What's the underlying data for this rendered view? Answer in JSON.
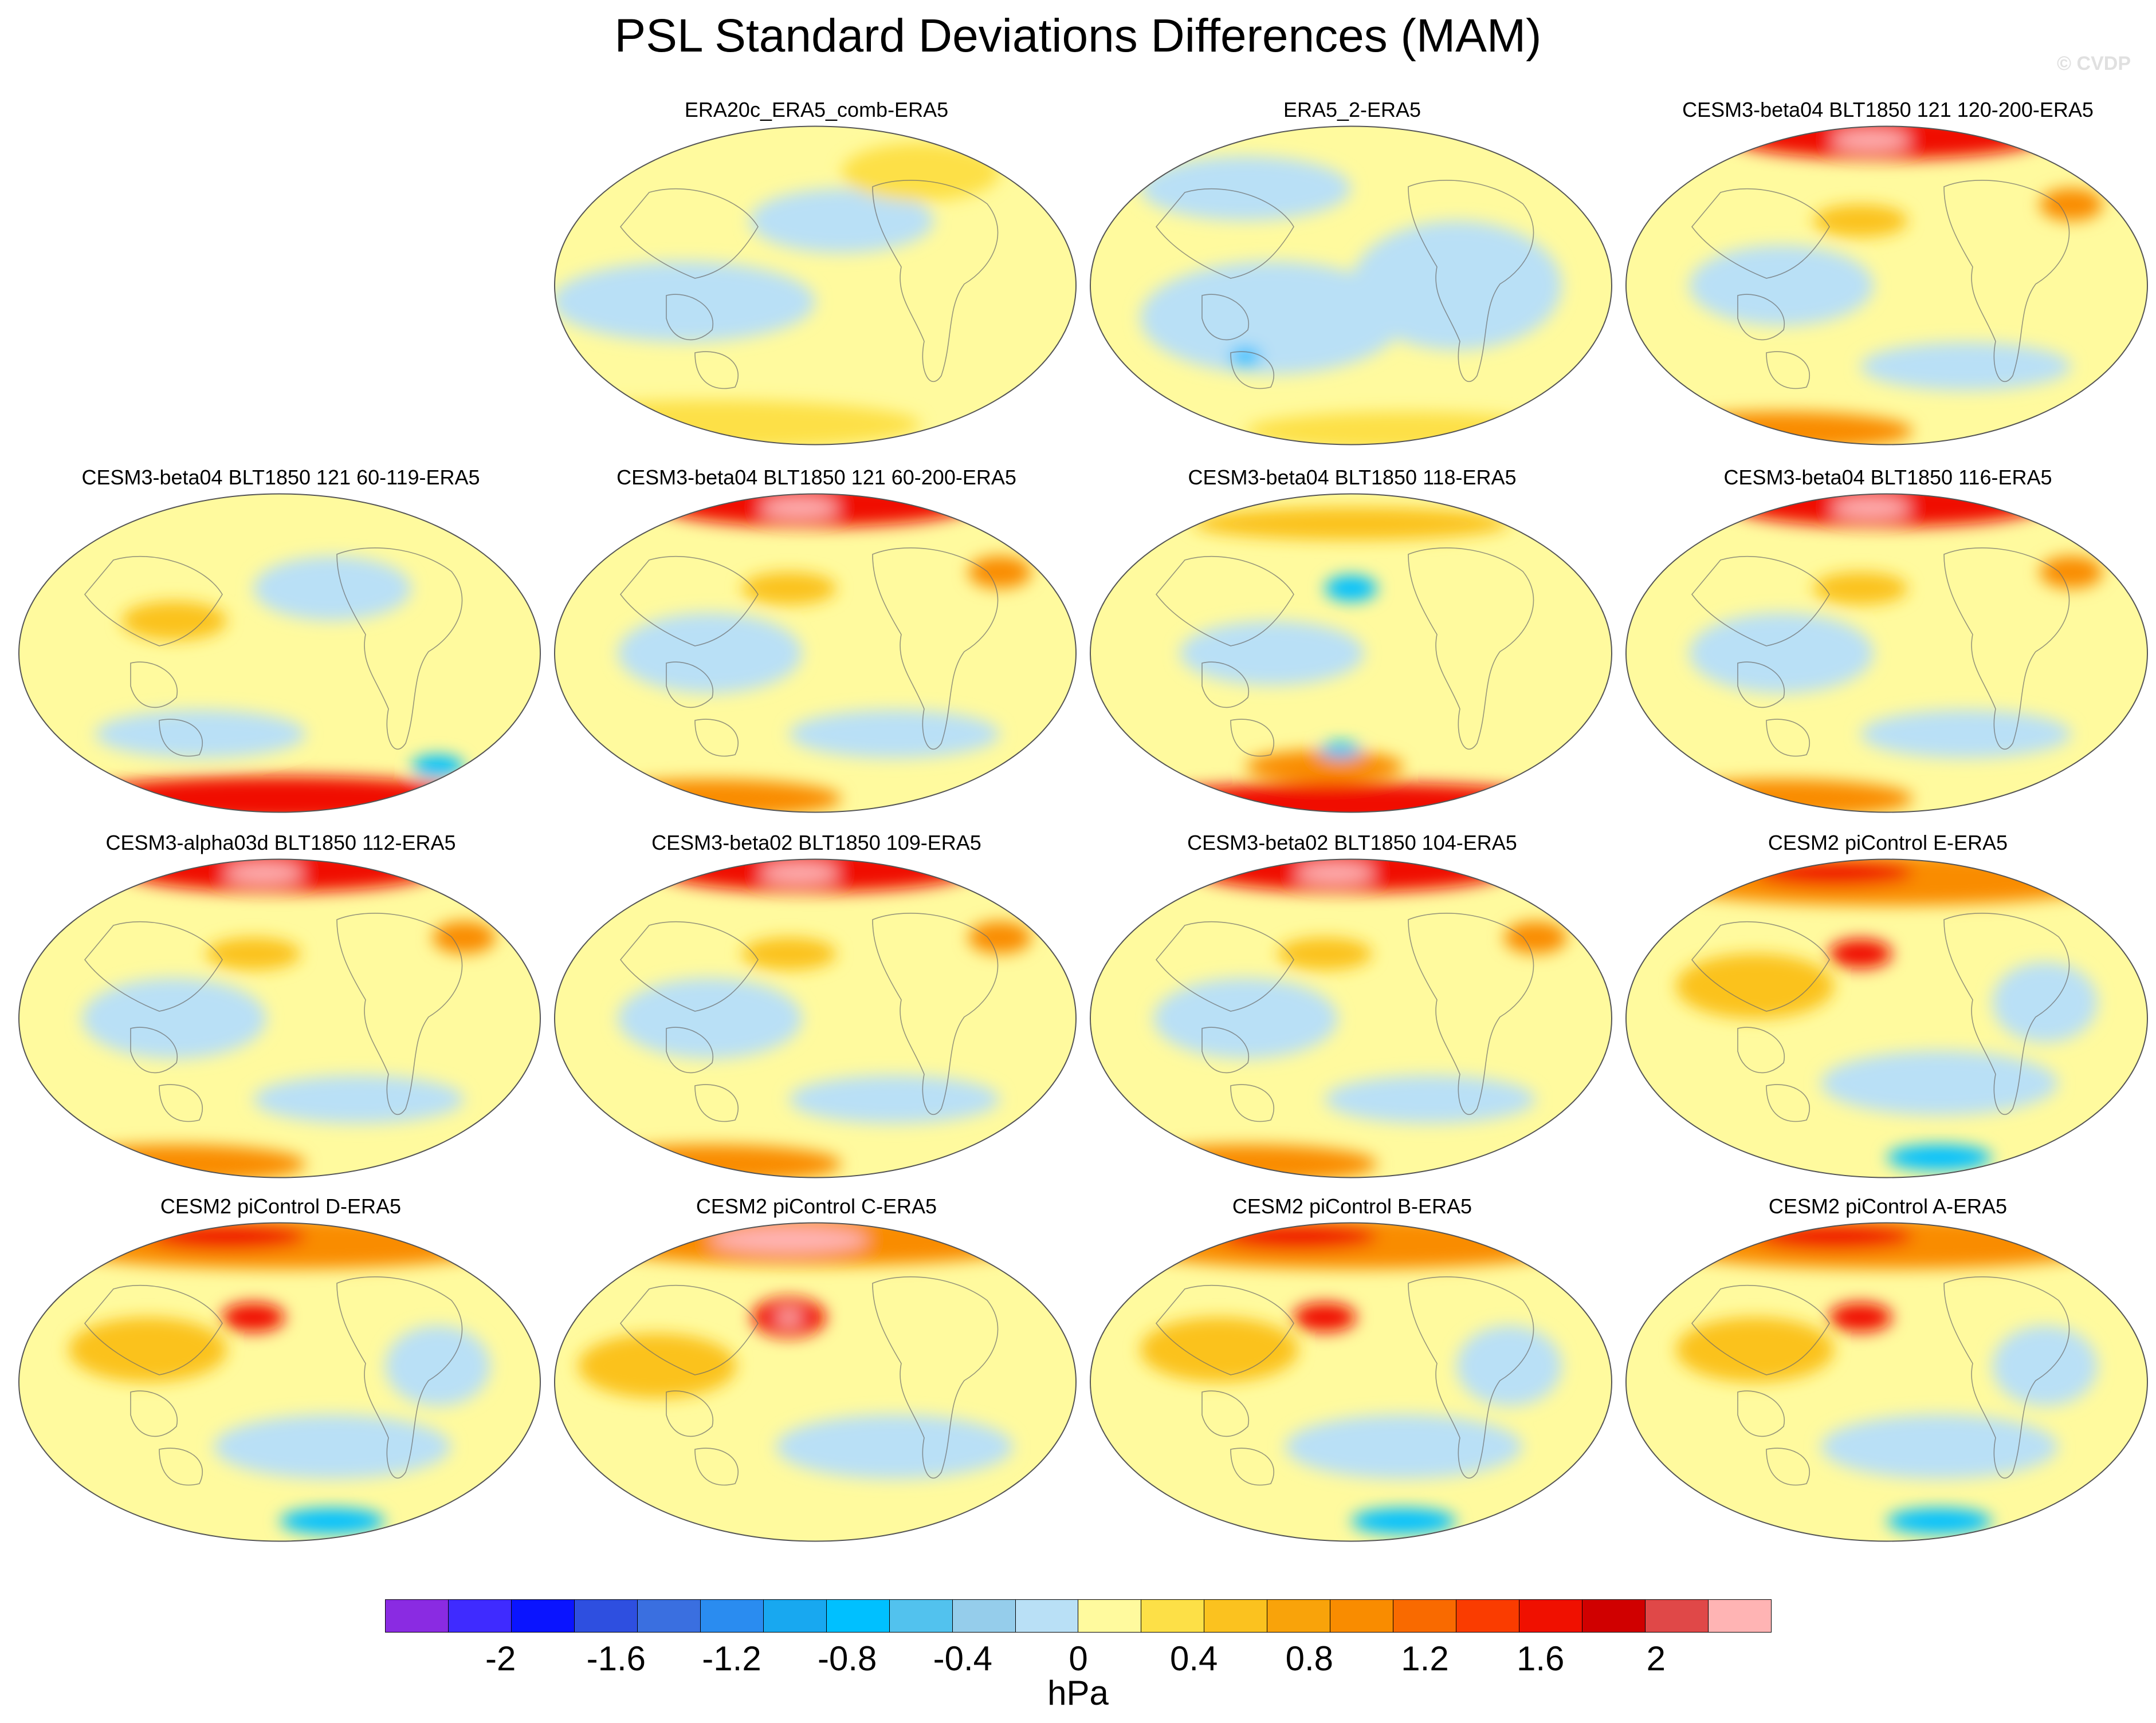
{
  "title": "PSL Standard Deviations Differences (MAM)",
  "copyright": "© CVDP",
  "panels": [
    {
      "label": "ERA20c_ERA5_comb-ERA5",
      "pattern": "mild"
    },
    {
      "label": "ERA5_2-ERA5",
      "pattern": "cool"
    },
    {
      "label": "CESM3-beta04 BLT1850 121 120-200-ERA5",
      "pattern": "arctic"
    },
    {
      "label": "CESM3-beta04 BLT1850 121 60-119-ERA5",
      "pattern": "south"
    },
    {
      "label": "CESM3-beta04 BLT1850 121 60-200-ERA5",
      "pattern": "arctic"
    },
    {
      "label": "CESM3-beta04 BLT1850 118-ERA5",
      "pattern": "southstrong"
    },
    {
      "label": "CESM3-beta04 BLT1850 116-ERA5",
      "pattern": "arctic"
    },
    {
      "label": "CESM3-alpha03d BLT1850 112-ERA5",
      "pattern": "arctic"
    },
    {
      "label": "CESM3-beta02 BLT1850 109-ERA5",
      "pattern": "arctic"
    },
    {
      "label": "CESM3-beta02 BLT1850 104-ERA5",
      "pattern": "arctic"
    },
    {
      "label": "CESM2 piControl E-ERA5",
      "pattern": "warmnorth"
    },
    {
      "label": "CESM2 piControl D-ERA5",
      "pattern": "warmnorth"
    },
    {
      "label": "CESM2 piControl C-ERA5",
      "pattern": "pacific"
    },
    {
      "label": "CESM2 piControl B-ERA5",
      "pattern": "warmnorth"
    },
    {
      "label": "CESM2 piControl A-ERA5",
      "pattern": "warmnorth"
    }
  ],
  "colorbar": {
    "units": "hPa",
    "colors": [
      "#8a2be2",
      "#3f2bff",
      "#0a14ff",
      "#2e4fe0",
      "#3a6fe0",
      "#2a8cf0",
      "#18a8f0",
      "#00c0ff",
      "#52c2ee",
      "#95cdeb",
      "#b9e0f6",
      "#fffa9e",
      "#fde047",
      "#fbc21f",
      "#f9a30a",
      "#f98c00",
      "#f96a00",
      "#fa3c00",
      "#f01000",
      "#d00000",
      "#e04848",
      "#ffb4b4"
    ],
    "ticks": [
      "-2",
      "-1.6",
      "-1.2",
      "-0.8",
      "-0.4",
      "0",
      "0.4",
      "0.8",
      "1.2",
      "1.6",
      "2"
    ],
    "tick_values": [
      -2,
      -1.6,
      -1.2,
      -0.8,
      -0.4,
      0,
      0.4,
      0.8,
      1.2,
      1.6,
      2
    ],
    "min": -2.4,
    "max": 2.4
  }
}
